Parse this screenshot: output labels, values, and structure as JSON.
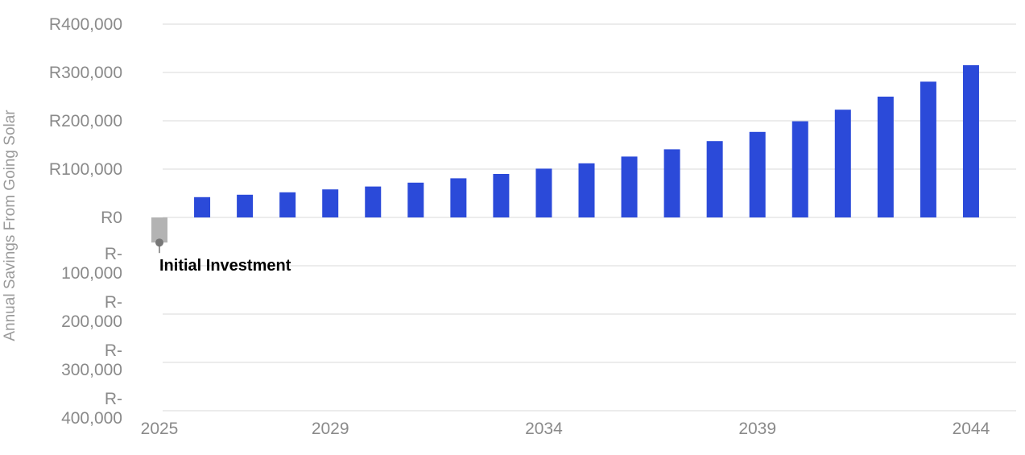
{
  "chart_data": {
    "type": "bar",
    "ylabel": "Annual Savings From Going Solar",
    "ylim": [
      -400000,
      400000
    ],
    "y_ticks": [
      {
        "value": 400000,
        "lines": [
          "R400,000"
        ]
      },
      {
        "value": 300000,
        "lines": [
          "R300,000"
        ]
      },
      {
        "value": 200000,
        "lines": [
          "R200,000"
        ]
      },
      {
        "value": 100000,
        "lines": [
          "R100,000"
        ]
      },
      {
        "value": 0,
        "lines": [
          "R0"
        ]
      },
      {
        "value": -100000,
        "lines": [
          "R-",
          "100,000"
        ]
      },
      {
        "value": -200000,
        "lines": [
          "R-",
          "200,000"
        ]
      },
      {
        "value": -300000,
        "lines": [
          "R-",
          "300,000"
        ]
      },
      {
        "value": -400000,
        "lines": [
          "R-",
          "400,000"
        ]
      }
    ],
    "x_tick_labels": [
      "2025",
      "2029",
      "2034",
      "2039",
      "2044"
    ],
    "categories": [
      2025,
      2026,
      2027,
      2028,
      2029,
      2030,
      2031,
      2032,
      2033,
      2034,
      2035,
      2036,
      2037,
      2038,
      2039,
      2040,
      2041,
      2042,
      2043,
      2044
    ],
    "values": [
      -52000,
      42000,
      47000,
      52000,
      58000,
      64000,
      72000,
      81000,
      90000,
      101000,
      112000,
      126000,
      141000,
      158000,
      177000,
      199000,
      223000,
      250000,
      281000,
      315000
    ],
    "grid": true,
    "legend": "none",
    "colors": {
      "positive": "#2b4ad9",
      "initial": "#b3b3b3",
      "grid": "#d9d9d9",
      "annotation_marker": "#777777"
    },
    "annotations": [
      {
        "category": 2025,
        "text": "Initial Investment"
      }
    ]
  }
}
